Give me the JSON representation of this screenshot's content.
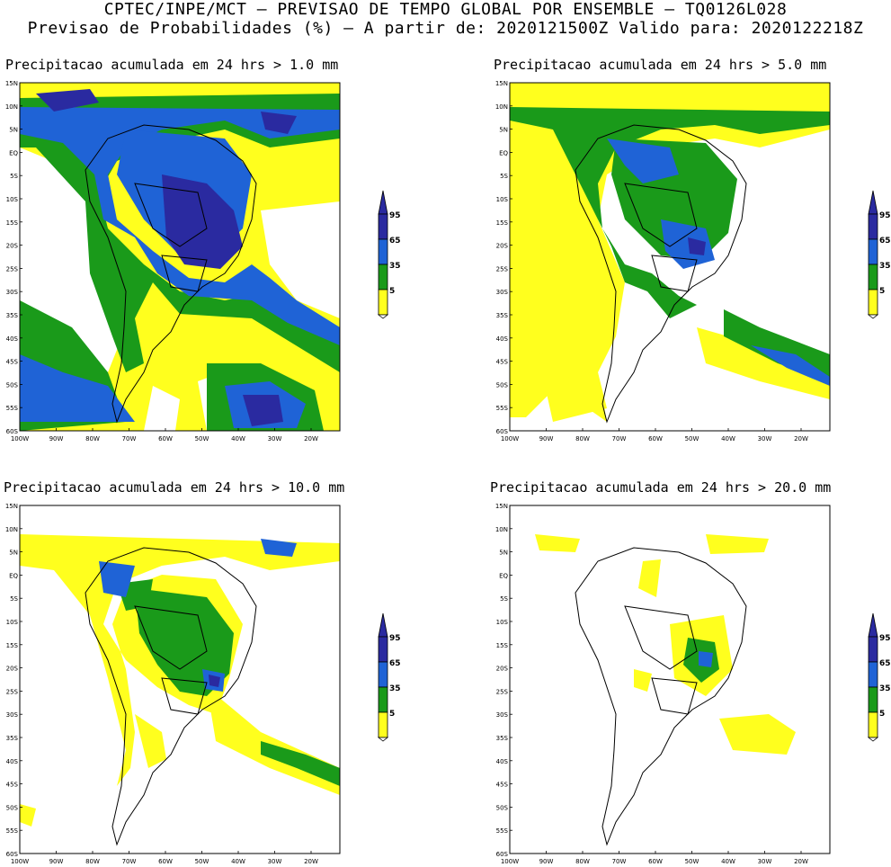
{
  "header": {
    "line1": "CPTEC/INPE/MCT – PREVISAO DE TEMPO GLOBAL POR ENSEMBLE – TQ0126L028",
    "line2": "Previsao de Probabilidades (%) –   A partir de: 2020121500Z  Valido para: 2020122218Z"
  },
  "panels": [
    {
      "title": "Precipitacao acumulada em 24 hrs > 1.0 mm"
    },
    {
      "title": "Precipitacao acumulada em 24 hrs > 5.0 mm"
    },
    {
      "title": "Precipitacao acumulada em 24 hrs > 10.0 mm"
    },
    {
      "title": "Precipitacao acumulada em 24 hrs > 20.0 mm"
    }
  ],
  "axes": {
    "lat_labels": [
      "15N",
      "10N",
      "5N",
      "EQ",
      "5S",
      "10S",
      "15S",
      "20S",
      "25S",
      "30S",
      "35S",
      "40S",
      "45S",
      "50S",
      "55S",
      "60S"
    ],
    "lon_labels": [
      "100W",
      "90W",
      "80W",
      "70W",
      "60W",
      "50W",
      "40W",
      "30W",
      "20W"
    ]
  },
  "legend": {
    "labels": [
      "95",
      "65",
      "35",
      "5"
    ],
    "colors": {
      "c95": "#2a2aa0",
      "c65": "#1f63d6",
      "c35": "#1a9a1a",
      "c5": "#ffff1e",
      "land_outline": "#000000"
    }
  }
}
